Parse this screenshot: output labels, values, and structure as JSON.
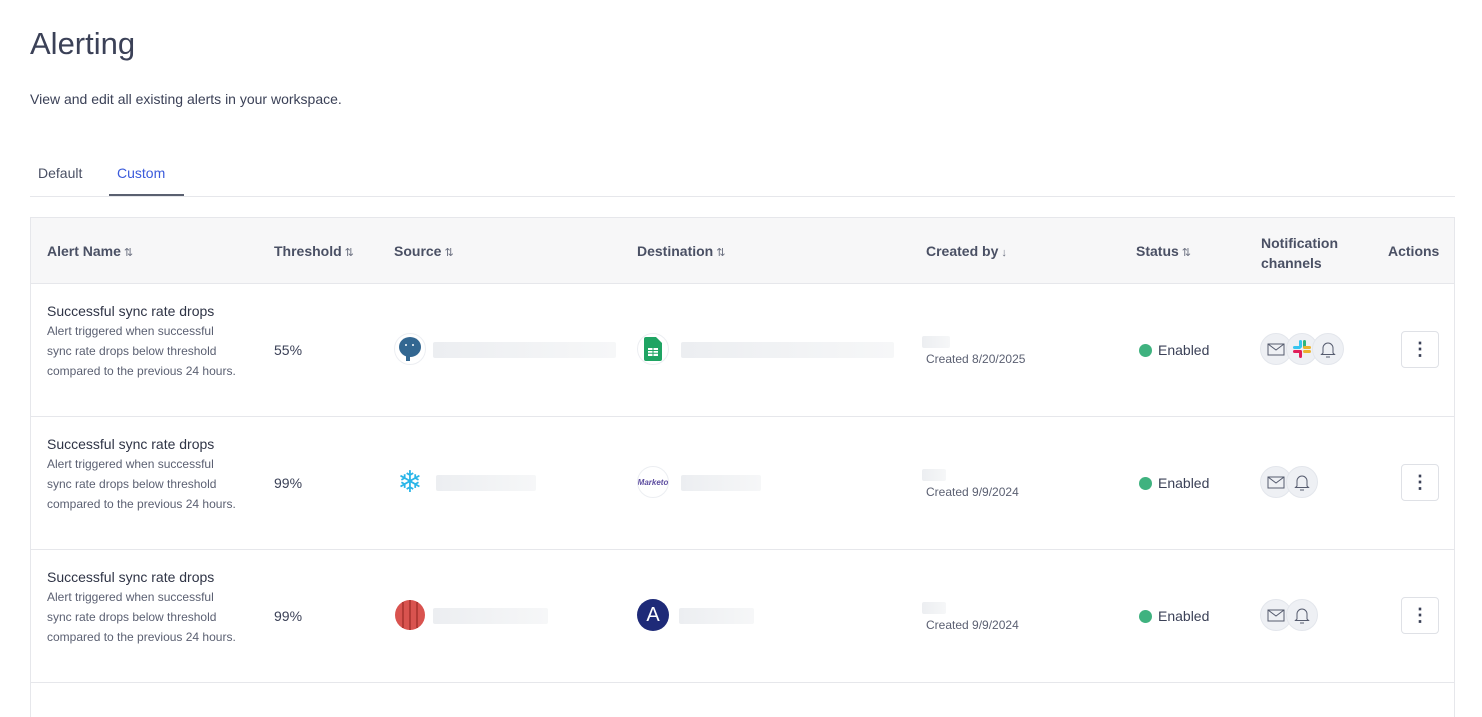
{
  "page": {
    "title": "Alerting",
    "subtitle": "View and edit all existing alerts in your workspace."
  },
  "tabs": [
    {
      "label": "Default",
      "active": false
    },
    {
      "label": "Custom",
      "active": true
    }
  ],
  "table": {
    "columns": [
      "Alert Name",
      "Threshold",
      "Source",
      "Destination",
      "Created by",
      "Status",
      "Notification channels",
      "Actions"
    ],
    "sort_icons": {
      "alert_name": "sort-both",
      "threshold": "sort-both",
      "source": "sort-both",
      "destination": "sort-both",
      "created_by": "sort-desc",
      "status": "sort-both"
    },
    "rows": [
      {
        "name": "Successful sync rate drops",
        "description": "Alert triggered when successful sync rate drops below threshold compared to the previous 24 hours.",
        "threshold": "55%",
        "source_icon": "postgresql-icon",
        "destination_icon": "google-sheets-icon",
        "created": "Created 8/20/2025",
        "status": "Enabled",
        "channels": [
          "email",
          "slack",
          "in-app"
        ]
      },
      {
        "name": "Successful sync rate drops",
        "description": "Alert triggered when successful sync rate drops below threshold compared to the previous 24 hours.",
        "threshold": "99%",
        "source_icon": "snowflake-icon",
        "destination_icon": "marketo-icon",
        "destination_logo_text": "Marketo",
        "created": "Created 9/9/2024",
        "status": "Enabled",
        "channels": [
          "email",
          "in-app"
        ]
      },
      {
        "name": "Successful sync rate drops",
        "description": "Alert triggered when successful sync rate drops below threshold compared to the previous 24 hours.",
        "threshold": "99%",
        "source_icon": "redshift-icon",
        "destination_icon": "amplitude-icon",
        "created": "Created 9/9/2024",
        "status": "Enabled",
        "channels": [
          "email",
          "in-app"
        ]
      }
    ]
  },
  "colors": {
    "accent": "#3b5bdb",
    "enabled": "#3fb27f"
  }
}
